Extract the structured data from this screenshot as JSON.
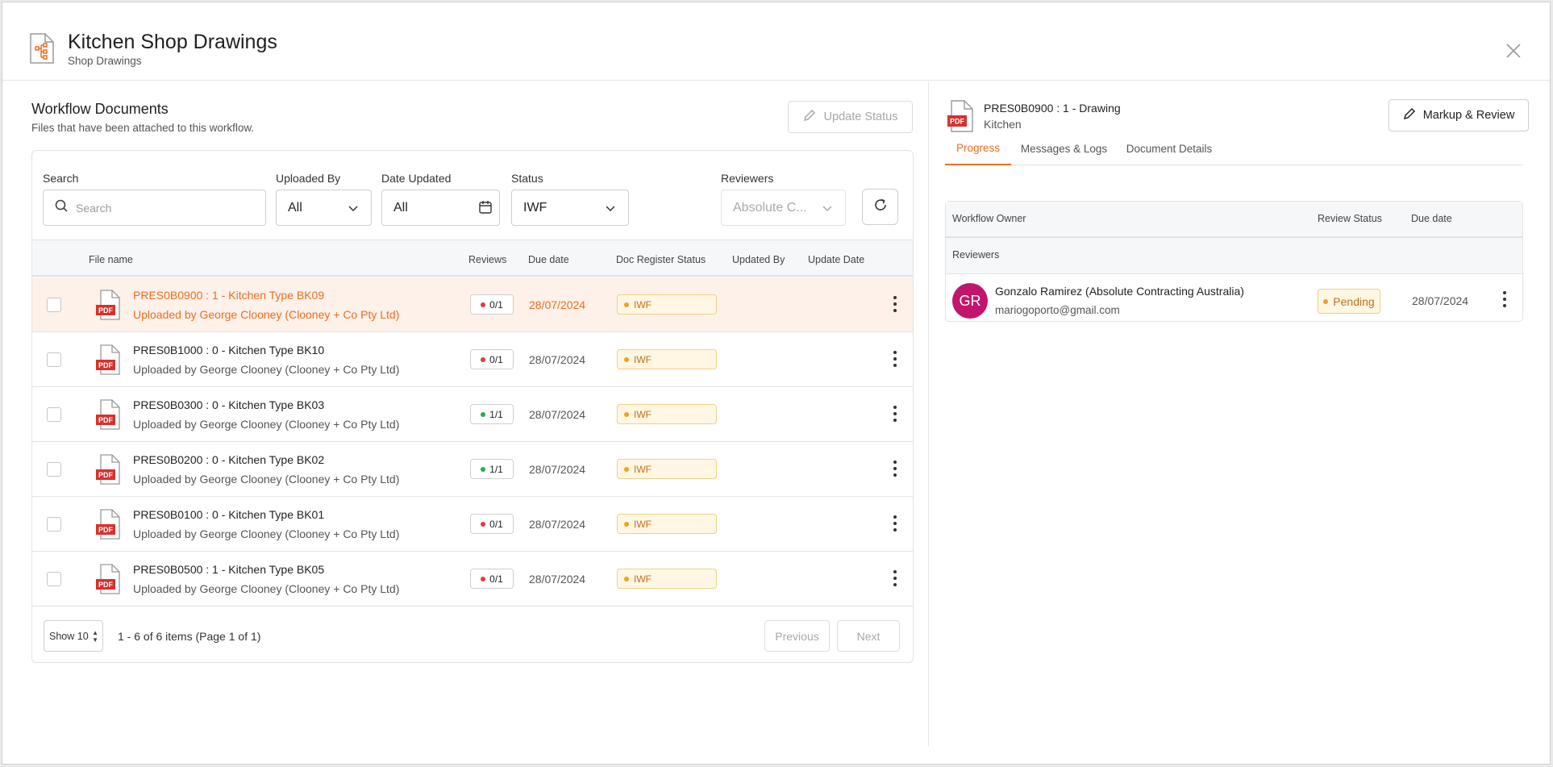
{
  "header": {
    "title": "Kitchen Shop Drawings",
    "subtitle": "Shop Drawings"
  },
  "left": {
    "title": "Workflow Documents",
    "subtitle": "Files that have been attached to this workflow.",
    "update_status_label": "Update Status"
  },
  "filters": {
    "search_label": "Search",
    "search_placeholder": "Search",
    "uploaded_by_label": "Uploaded By",
    "uploaded_by_value": "All",
    "date_updated_label": "Date Updated",
    "date_updated_value": "All",
    "status_label": "Status",
    "status_value": "IWF",
    "reviewers_label": "Reviewers",
    "reviewers_value": "Absolute C..."
  },
  "table": {
    "headers": {
      "file_name": "File name",
      "reviews": "Reviews",
      "due_date": "Due date",
      "doc_register_status": "Doc Register Status",
      "updated_by": "Updated By",
      "update_date": "Update Date"
    },
    "pdf_label": "PDF",
    "rows": [
      {
        "name": "PRES0B0900 : 1 - Kitchen Type BK09",
        "uploaded": "Uploaded by George Clooney (Clooney + Co Pty Ltd)",
        "reviews": "0/1",
        "review_state": "red",
        "due": "28/07/2024",
        "status": "IWF",
        "active": true
      },
      {
        "name": "PRES0B1000 : 0 - Kitchen Type BK10",
        "uploaded": "Uploaded by George Clooney (Clooney + Co Pty Ltd)",
        "reviews": "0/1",
        "review_state": "red",
        "due": "28/07/2024",
        "status": "IWF",
        "active": false
      },
      {
        "name": "PRES0B0300 : 0 - Kitchen Type BK03",
        "uploaded": "Uploaded by George Clooney (Clooney + Co Pty Ltd)",
        "reviews": "1/1",
        "review_state": "green",
        "due": "28/07/2024",
        "status": "IWF",
        "active": false
      },
      {
        "name": "PRES0B0200 : 0 - Kitchen Type BK02",
        "uploaded": "Uploaded by George Clooney (Clooney + Co Pty Ltd)",
        "reviews": "1/1",
        "review_state": "green",
        "due": "28/07/2024",
        "status": "IWF",
        "active": false
      },
      {
        "name": "PRES0B0100 : 0 - Kitchen Type BK01",
        "uploaded": "Uploaded by George Clooney (Clooney + Co Pty Ltd)",
        "reviews": "0/1",
        "review_state": "red",
        "due": "28/07/2024",
        "status": "IWF",
        "active": false
      },
      {
        "name": "PRES0B0500 : 1 - Kitchen Type BK05",
        "uploaded": "Uploaded by George Clooney (Clooney + Co Pty Ltd)",
        "reviews": "0/1",
        "review_state": "red",
        "due": "28/07/2024",
        "status": "IWF",
        "active": false
      }
    ]
  },
  "pager": {
    "show": "Show 10",
    "summary": "1 - 6 of 6 items (Page 1 of 1)",
    "previous": "Previous",
    "next": "Next"
  },
  "right": {
    "doc_title": "PRES0B0900 : 1 - Drawing",
    "doc_subtitle": "Kitchen",
    "markup_label": "Markup & Review",
    "tabs": [
      "Progress",
      "Messages & Logs",
      "Document Details"
    ],
    "table_headers": {
      "owner": "Workflow Owner",
      "review_status": "Review Status",
      "due_date": "Due date"
    },
    "reviewers_label": "Reviewers",
    "reviewer": {
      "initials": "GR",
      "name": "Gonzalo Ramirez (Absolute Contracting Australia)",
      "email": "mariogoporto@gmail.com",
      "status": "Pending",
      "due": "28/07/2024"
    }
  },
  "colors": {
    "accent": "#f26b1d",
    "avatar": "#c2156c",
    "pdf_red": "#d9302b"
  }
}
